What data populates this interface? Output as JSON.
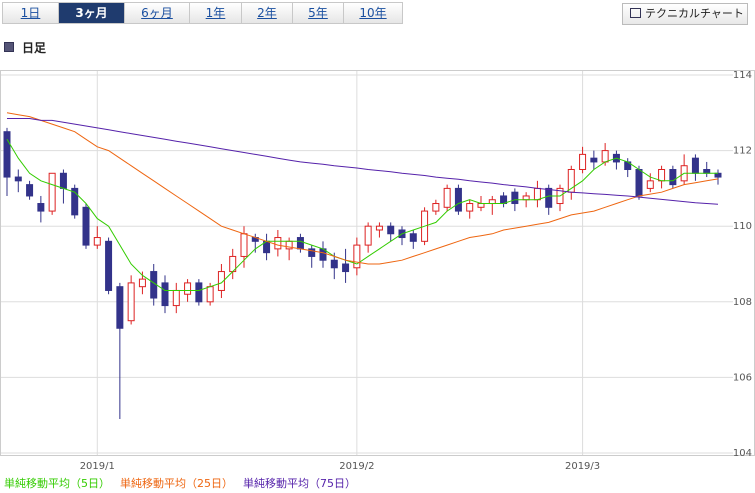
{
  "tabs": [
    "1日",
    "3ヶ月",
    "6ヶ月",
    "1年",
    "2年",
    "5年",
    "10年"
  ],
  "button": "テクニカルチャート",
  "period_label": "日足",
  "chart_data": {
    "type": "candlestick",
    "categories": [
      null,
      null,
      null,
      null,
      null,
      null,
      null,
      null,
      "2019/1",
      null,
      null,
      null,
      null,
      null,
      null,
      null,
      null,
      null,
      null,
      null,
      null,
      null,
      null,
      null,
      null,
      null,
      null,
      null,
      null,
      null,
      null,
      "2019/2",
      null,
      null,
      null,
      null,
      null,
      null,
      null,
      null,
      null,
      null,
      null,
      null,
      null,
      null,
      null,
      null,
      null,
      null,
      null,
      "2019/3",
      null,
      null,
      null,
      null,
      null,
      null,
      null,
      null,
      null,
      null,
      null,
      null
    ],
    "open": [
      112.5,
      111.3,
      111.1,
      110.6,
      110.4,
      111.4,
      111.0,
      110.5,
      109.5,
      109.6,
      108.4,
      107.5,
      108.4,
      108.8,
      108.5,
      107.9,
      108.2,
      108.5,
      108.0,
      108.3,
      108.8,
      109.2,
      109.7,
      109.6,
      109.4,
      109.4,
      109.7,
      109.4,
      109.4,
      109.1,
      109.0,
      108.9,
      109.5,
      109.9,
      110.0,
      109.9,
      109.8,
      109.6,
      110.4,
      110.5,
      111.0,
      110.4,
      110.5,
      110.6,
      110.8,
      110.9,
      110.7,
      110.7,
      111.0,
      110.6,
      110.9,
      111.5,
      111.8,
      111.7,
      111.9,
      111.7,
      111.5,
      111.0,
      111.2,
      111.5,
      111.2,
      111.8,
      111.5,
      111.4
    ],
    "high": [
      112.6,
      111.5,
      111.2,
      110.8,
      111.4,
      111.5,
      111.1,
      110.6,
      110.0,
      109.7,
      108.5,
      108.7,
      108.8,
      109.0,
      108.7,
      108.5,
      108.6,
      108.6,
      108.5,
      109.0,
      109.4,
      110.0,
      109.8,
      109.8,
      109.9,
      109.7,
      109.8,
      109.5,
      109.6,
      109.3,
      109.4,
      109.7,
      110.1,
      110.1,
      110.1,
      110.0,
      109.9,
      110.5,
      110.7,
      111.1,
      111.1,
      110.7,
      110.8,
      110.8,
      110.9,
      111.0,
      110.9,
      111.2,
      111.1,
      111.1,
      111.6,
      112.1,
      112.0,
      112.2,
      112.0,
      111.8,
      111.6,
      111.4,
      111.6,
      111.6,
      111.9,
      111.9,
      111.7,
      111.5
    ],
    "low": [
      110.8,
      110.9,
      110.7,
      110.1,
      110.3,
      110.6,
      110.2,
      109.4,
      109.4,
      108.2,
      104.9,
      107.4,
      108.2,
      107.9,
      107.7,
      107.7,
      108.0,
      107.9,
      107.9,
      108.1,
      108.6,
      108.9,
      109.3,
      109.1,
      109.2,
      109.1,
      109.3,
      108.9,
      108.9,
      108.6,
      108.5,
      108.7,
      109.3,
      109.7,
      109.6,
      109.5,
      109.4,
      109.5,
      110.3,
      110.4,
      110.3,
      110.2,
      110.4,
      110.3,
      110.5,
      110.4,
      110.5,
      110.5,
      110.3,
      110.4,
      110.7,
      111.4,
      111.5,
      111.6,
      111.5,
      111.3,
      110.7,
      110.9,
      111.0,
      111.0,
      111.1,
      111.2,
      111.3,
      111.1
    ],
    "close": [
      111.3,
      111.2,
      110.8,
      110.4,
      111.4,
      111.0,
      110.3,
      109.5,
      109.7,
      108.3,
      107.3,
      108.5,
      108.6,
      108.1,
      107.9,
      108.3,
      108.5,
      108.0,
      108.4,
      108.8,
      109.2,
      109.8,
      109.6,
      109.3,
      109.7,
      109.6,
      109.4,
      109.2,
      109.1,
      108.9,
      108.8,
      109.5,
      110.0,
      110.0,
      109.8,
      109.7,
      109.6,
      110.4,
      110.6,
      111.0,
      110.4,
      110.6,
      110.6,
      110.7,
      110.6,
      110.6,
      110.8,
      111.0,
      110.5,
      111.0,
      111.5,
      111.9,
      111.7,
      112.0,
      111.7,
      111.5,
      110.8,
      111.2,
      111.5,
      111.1,
      111.6,
      111.4,
      111.4,
      111.3
    ],
    "up_color": "#dd2222",
    "down_color": "#33338a",
    "series": [
      {
        "name": "単純移動平均（5日）",
        "color": "#33cc00",
        "values": [
          112.3,
          111.8,
          111.4,
          111.2,
          111.1,
          111.0,
          110.9,
          110.6,
          110.2,
          110.0,
          109.5,
          109.0,
          108.7,
          108.5,
          108.3,
          108.3,
          108.3,
          108.3,
          108.4,
          108.5,
          108.8,
          109.1,
          109.4,
          109.6,
          109.6,
          109.6,
          109.6,
          109.5,
          109.4,
          109.2,
          109.1,
          109.0,
          109.2,
          109.4,
          109.6,
          109.8,
          109.9,
          110.0,
          110.1,
          110.4,
          110.6,
          110.7,
          110.6,
          110.6,
          110.6,
          110.7,
          110.7,
          110.7,
          110.8,
          110.8,
          111.0,
          111.2,
          111.5,
          111.7,
          111.8,
          111.7,
          111.5,
          111.3,
          111.2,
          111.2,
          111.4,
          111.4,
          111.4,
          111.4
        ]
      },
      {
        "name": "単純移動平均（25日）",
        "color": "#ee6611",
        "values": [
          113.0,
          112.95,
          112.9,
          112.8,
          112.7,
          112.6,
          112.5,
          112.3,
          112.1,
          112.0,
          111.8,
          111.6,
          111.4,
          111.2,
          111.0,
          110.8,
          110.6,
          110.4,
          110.2,
          110.0,
          109.9,
          109.8,
          109.7,
          109.6,
          109.5,
          109.45,
          109.4,
          109.35,
          109.3,
          109.2,
          109.1,
          109.05,
          109.0,
          109.0,
          109.05,
          109.1,
          109.2,
          109.3,
          109.4,
          109.5,
          109.6,
          109.7,
          109.75,
          109.8,
          109.9,
          109.95,
          110.0,
          110.05,
          110.1,
          110.2,
          110.3,
          110.35,
          110.4,
          110.5,
          110.6,
          110.7,
          110.8,
          110.85,
          110.9,
          111.0,
          111.1,
          111.15,
          111.2,
          111.25
        ]
      },
      {
        "name": "単純移動平均（75日）",
        "color": "#5522aa",
        "values": [
          112.85,
          112.85,
          112.85,
          112.8,
          112.8,
          112.75,
          112.7,
          112.65,
          112.6,
          112.55,
          112.5,
          112.45,
          112.4,
          112.35,
          112.3,
          112.25,
          112.2,
          112.15,
          112.1,
          112.05,
          112.0,
          111.95,
          111.9,
          111.85,
          111.8,
          111.75,
          111.7,
          111.67,
          111.64,
          111.6,
          111.57,
          111.54,
          111.5,
          111.47,
          111.44,
          111.4,
          111.37,
          111.34,
          111.3,
          111.27,
          111.24,
          111.2,
          111.17,
          111.14,
          111.1,
          111.07,
          111.04,
          111.0,
          110.97,
          110.94,
          110.9,
          110.88,
          110.86,
          110.84,
          110.82,
          110.8,
          110.77,
          110.74,
          110.71,
          110.68,
          110.65,
          110.62,
          110.6,
          110.58
        ]
      }
    ],
    "ylim": [
      104,
      114
    ],
    "yticks": [
      104,
      106,
      108,
      110,
      112,
      114
    ],
    "grid": true
  }
}
